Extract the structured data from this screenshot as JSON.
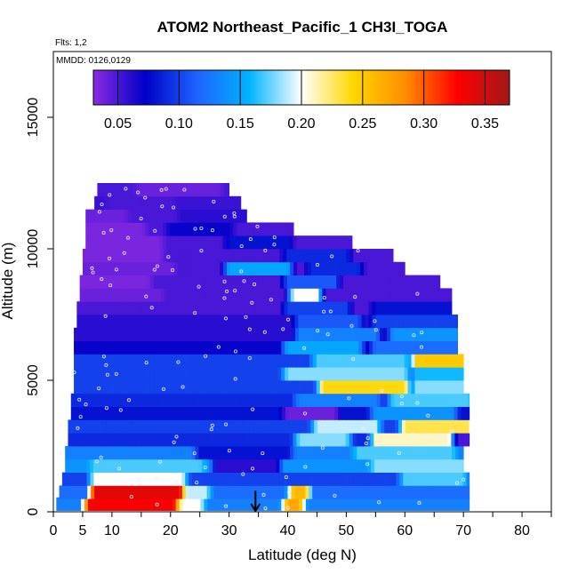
{
  "chart_data": {
    "type": "heatmap",
    "title": "ATOM2 Northeast_Pacific_1 CH3I_TOGA",
    "flights_label": "Flts: 1,2",
    "dates_label": "MMDD: 0126,0129",
    "xlabel": "Latitude (deg N)",
    "ylabel": "Altitude (m)",
    "xlim": [
      0,
      85
    ],
    "ylim": [
      0,
      17500
    ],
    "x_ticks": [
      0,
      5,
      10,
      20,
      30,
      40,
      50,
      60,
      70,
      80
    ],
    "x_minor_ticks": [
      0,
      5,
      10,
      15,
      20,
      25,
      30,
      35,
      40,
      45,
      50,
      55,
      60,
      65,
      70,
      75,
      80,
      85
    ],
    "y_ticks": [
      0,
      5000,
      10000,
      15000
    ],
    "colorbar": {
      "range": [
        0.03,
        0.37
      ],
      "ticks": [
        0.05,
        0.1,
        0.15,
        0.2,
        0.25,
        0.3,
        0.35
      ],
      "tick_labels": [
        "0.05",
        "0.10",
        "0.15",
        "0.20",
        "0.25",
        "0.30",
        "0.35"
      ],
      "colors": [
        "#8a2be2",
        "#0000c8",
        "#1e64ff",
        "#00b4ff",
        "#ffffff",
        "#ffd700",
        "#ff8c00",
        "#ff0000",
        "#a01818"
      ]
    },
    "marker": {
      "x": 34.5,
      "label": "arrow",
      "y_from": 800,
      "y_to": 0
    },
    "layers": [
      {
        "alt": 300,
        "x0": 0.5,
        "x1": 71,
        "base": 0.13,
        "hot": [
          [
            6,
            22,
            0.33
          ],
          [
            40,
            42,
            0.27
          ],
          [
            22,
            25,
            0.2
          ]
        ]
      },
      {
        "alt": 750,
        "x0": 1,
        "x1": 71,
        "base": 0.12,
        "hot": [
          [
            7,
            22,
            0.34
          ],
          [
            41,
            43,
            0.26
          ],
          [
            23,
            26,
            0.19
          ]
        ]
      },
      {
        "alt": 1250,
        "x0": 1.5,
        "x1": 71,
        "base": 0.1,
        "hot": [
          [
            7,
            22,
            0.2
          ],
          [
            60,
            70,
            0.17
          ]
        ]
      },
      {
        "alt": 1750,
        "x0": 2,
        "x1": 70,
        "base": 0.14,
        "hot": [
          [
            7,
            25,
            0.17
          ],
          [
            28,
            38,
            0.06
          ],
          [
            55,
            70,
            0.18
          ]
        ]
      },
      {
        "alt": 2250,
        "x0": 2,
        "x1": 70,
        "base": 0.13,
        "hot": [
          [
            25,
            40,
            0.08
          ],
          [
            52,
            68,
            0.17
          ]
        ]
      },
      {
        "alt": 2750,
        "x0": 2.5,
        "x1": 71,
        "base": 0.09,
        "hot": [
          [
            42,
            50,
            0.18
          ],
          [
            55,
            69,
            0.21
          ],
          [
            69,
            71,
            0.05
          ]
        ]
      },
      {
        "alt": 3250,
        "x0": 2.5,
        "x1": 71,
        "base": 0.1,
        "hot": [
          [
            45,
            55,
            0.19
          ],
          [
            60,
            71,
            0.23
          ]
        ]
      },
      {
        "alt": 3750,
        "x0": 3,
        "x1": 71,
        "base": 0.08,
        "hot": [
          [
            40,
            48,
            0.04
          ],
          [
            55,
            68,
            0.14
          ]
        ]
      },
      {
        "alt": 4250,
        "x0": 3,
        "x1": 71,
        "base": 0.09,
        "hot": [
          [
            42,
            55,
            0.13
          ],
          [
            58,
            71,
            0.17
          ]
        ]
      },
      {
        "alt": 4750,
        "x0": 3.5,
        "x1": 70,
        "base": 0.1,
        "hot": [
          [
            46,
            60,
            0.24
          ],
          [
            62,
            70,
            0.18
          ]
        ]
      },
      {
        "alt": 5250,
        "x0": 3.5,
        "x1": 70,
        "base": 0.1,
        "hot": [
          [
            40,
            60,
            0.18
          ],
          [
            62,
            70,
            0.16
          ]
        ]
      },
      {
        "alt": 5750,
        "x0": 3.5,
        "x1": 70,
        "base": 0.1,
        "hot": [
          [
            45,
            60,
            0.17
          ],
          [
            62,
            70,
            0.25
          ]
        ]
      },
      {
        "alt": 6250,
        "x0": 3.5,
        "x1": 69,
        "base": 0.07,
        "hot": [
          [
            40,
            52,
            0.15
          ],
          [
            55,
            69,
            0.12
          ]
        ]
      },
      {
        "alt": 6750,
        "x0": 3.5,
        "x1": 69,
        "base": 0.06,
        "hot": [
          [
            42,
            55,
            0.13
          ],
          [
            58,
            69,
            0.14
          ]
        ]
      },
      {
        "alt": 7250,
        "x0": 4,
        "x1": 69,
        "base": 0.06,
        "hot": [
          [
            42,
            52,
            0.11
          ],
          [
            55,
            69,
            0.1
          ]
        ]
      },
      {
        "alt": 7750,
        "x0": 4,
        "x1": 68,
        "base": 0.05,
        "hot": [
          [
            40,
            50,
            0.1
          ],
          [
            55,
            68,
            0.08
          ]
        ]
      },
      {
        "alt": 8250,
        "x0": 4.5,
        "x1": 68,
        "base": 0.05,
        "hot": [
          [
            4,
            18,
            0.04
          ],
          [
            41,
            45,
            0.2
          ]
        ]
      },
      {
        "alt": 8750,
        "x0": 4.5,
        "x1": 66,
        "base": 0.05,
        "hot": [
          [
            4,
            16,
            0.035
          ],
          [
            40,
            48,
            0.11
          ]
        ]
      },
      {
        "alt": 9250,
        "x0": 5,
        "x1": 60,
        "base": 0.05,
        "hot": [
          [
            5,
            20,
            0.04
          ],
          [
            30,
            40,
            0.15
          ],
          [
            44,
            52,
            0.09
          ]
        ]
      },
      {
        "alt": 9750,
        "x0": 5,
        "x1": 58,
        "base": 0.05,
        "hot": [
          [
            5,
            18,
            0.035
          ],
          [
            40,
            50,
            0.09
          ]
        ]
      },
      {
        "alt": 10250,
        "x0": 5.5,
        "x1": 51,
        "base": 0.05,
        "hot": [
          [
            5,
            18,
            0.035
          ],
          [
            30,
            40,
            0.08
          ]
        ]
      },
      {
        "alt": 10750,
        "x0": 5.5,
        "x1": 41,
        "base": 0.05,
        "hot": [
          [
            5,
            15,
            0.035
          ],
          [
            20,
            30,
            0.07
          ]
        ]
      },
      {
        "alt": 11250,
        "x0": 5.5,
        "x1": 33,
        "base": 0.05,
        "hot": [
          [
            5,
            12,
            0.04
          ],
          [
            22,
            33,
            0.06
          ]
        ]
      },
      {
        "alt": 11750,
        "x0": 7,
        "x1": 32,
        "base": 0.055,
        "hot": [
          [
            10,
            20,
            0.05
          ]
        ]
      },
      {
        "alt": 12250,
        "x0": 7.5,
        "x1": 30,
        "base": 0.05,
        "hot": [
          [
            15,
            28,
            0.04
          ]
        ]
      }
    ]
  }
}
